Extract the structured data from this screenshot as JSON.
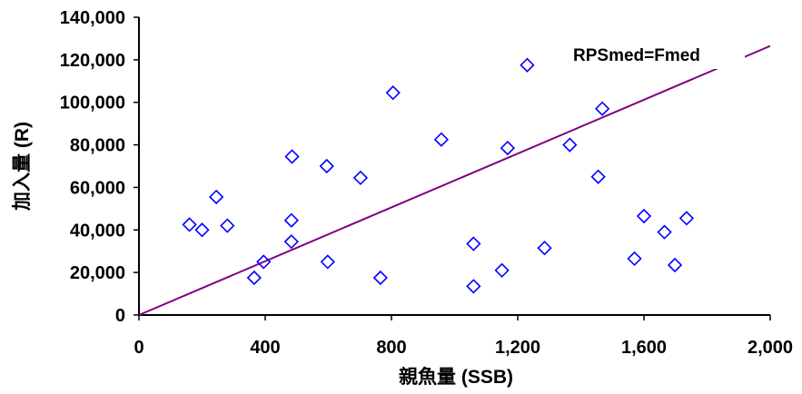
{
  "chart_data": {
    "type": "scatter",
    "xlabel": "親魚量 (SSB)",
    "ylabel": "加入量 (R)",
    "xlim": [
      0,
      2000
    ],
    "ylim": [
      0,
      140000
    ],
    "x_ticks": [
      0,
      400,
      800,
      1200,
      1600,
      2000
    ],
    "x_tick_labels": [
      "0",
      "400",
      "800",
      "1,200",
      "1,600",
      "2,000"
    ],
    "y_ticks": [
      0,
      20000,
      40000,
      60000,
      80000,
      100000,
      120000,
      140000
    ],
    "y_tick_labels": [
      "0",
      "20,000",
      "40,000",
      "60,000",
      "80,000",
      "100,000",
      "120,000",
      "140,000"
    ],
    "grid": false,
    "marker_color": "#0000ff",
    "line_color": "#800080",
    "points": [
      {
        "x": 160,
        "y": 42500
      },
      {
        "x": 200,
        "y": 40000
      },
      {
        "x": 245,
        "y": 55500
      },
      {
        "x": 280,
        "y": 42000
      },
      {
        "x": 365,
        "y": 17500
      },
      {
        "x": 395,
        "y": 25000
      },
      {
        "x": 485,
        "y": 74500
      },
      {
        "x": 483,
        "y": 44500
      },
      {
        "x": 483,
        "y": 34500
      },
      {
        "x": 595,
        "y": 70000
      },
      {
        "x": 598,
        "y": 25000
      },
      {
        "x": 702,
        "y": 64500
      },
      {
        "x": 765,
        "y": 17500
      },
      {
        "x": 805,
        "y": 104500
      },
      {
        "x": 958,
        "y": 82500
      },
      {
        "x": 1060,
        "y": 33500
      },
      {
        "x": 1060,
        "y": 13500
      },
      {
        "x": 1150,
        "y": 21000
      },
      {
        "x": 1168,
        "y": 78500
      },
      {
        "x": 1230,
        "y": 117500
      },
      {
        "x": 1285,
        "y": 31500
      },
      {
        "x": 1365,
        "y": 80000
      },
      {
        "x": 1455,
        "y": 65000
      },
      {
        "x": 1468,
        "y": 97000
      },
      {
        "x": 1570,
        "y": 26500
      },
      {
        "x": 1600,
        "y": 46500
      },
      {
        "x": 1665,
        "y": 39000
      },
      {
        "x": 1698,
        "y": 23500
      },
      {
        "x": 1735,
        "y": 45500
      }
    ],
    "line": {
      "name": "RPSmed=Fmed",
      "x": [
        0,
        2000
      ],
      "y": [
        0,
        126500
      ]
    }
  }
}
